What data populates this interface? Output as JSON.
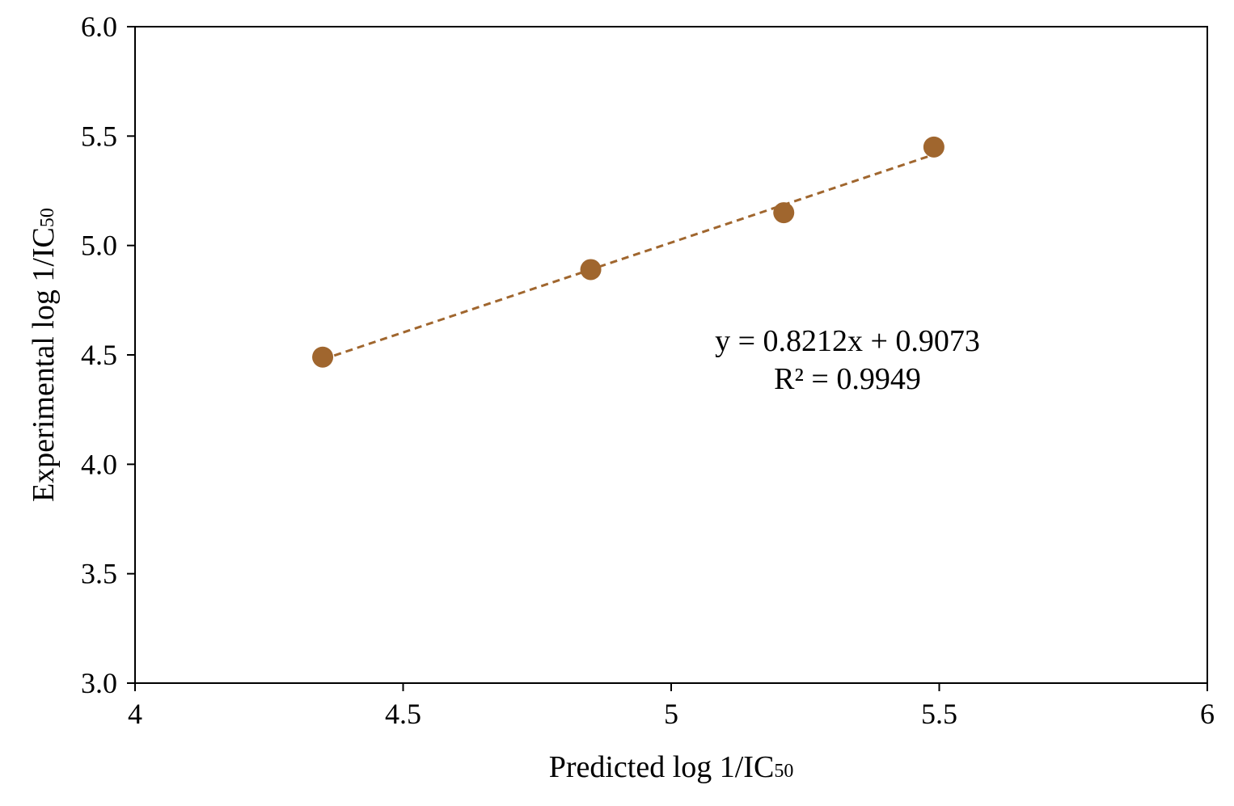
{
  "chart_data": {
    "type": "scatter",
    "xlabel": "Predicted log 1/IC",
    "xlabel_sub": "50",
    "ylabel": "Experimental log 1/IC",
    "ylabel_sub": "50",
    "xlim": [
      4,
      6
    ],
    "ylim": [
      3.0,
      6.0
    ],
    "x_ticks": [
      "4",
      "4.5",
      "5",
      "5.5",
      "6"
    ],
    "y_ticks": [
      "3.0",
      "3.5",
      "4.0",
      "4.5",
      "5.0",
      "5.5",
      "6.0"
    ],
    "grid": false,
    "series": [
      {
        "x": [
          4.35,
          4.85,
          5.21,
          5.49
        ],
        "y": [
          4.49,
          4.89,
          5.15,
          5.45
        ],
        "color": "#A0662E"
      }
    ],
    "trendline": {
      "slope": 0.8212,
      "intercept": 0.9073,
      "x_range": [
        4.35,
        5.49
      ],
      "style": "dashed",
      "color": "#A0662E"
    },
    "annotations": [
      "y = 0.8212x + 0.9073",
      "R² = 0.9949"
    ]
  }
}
